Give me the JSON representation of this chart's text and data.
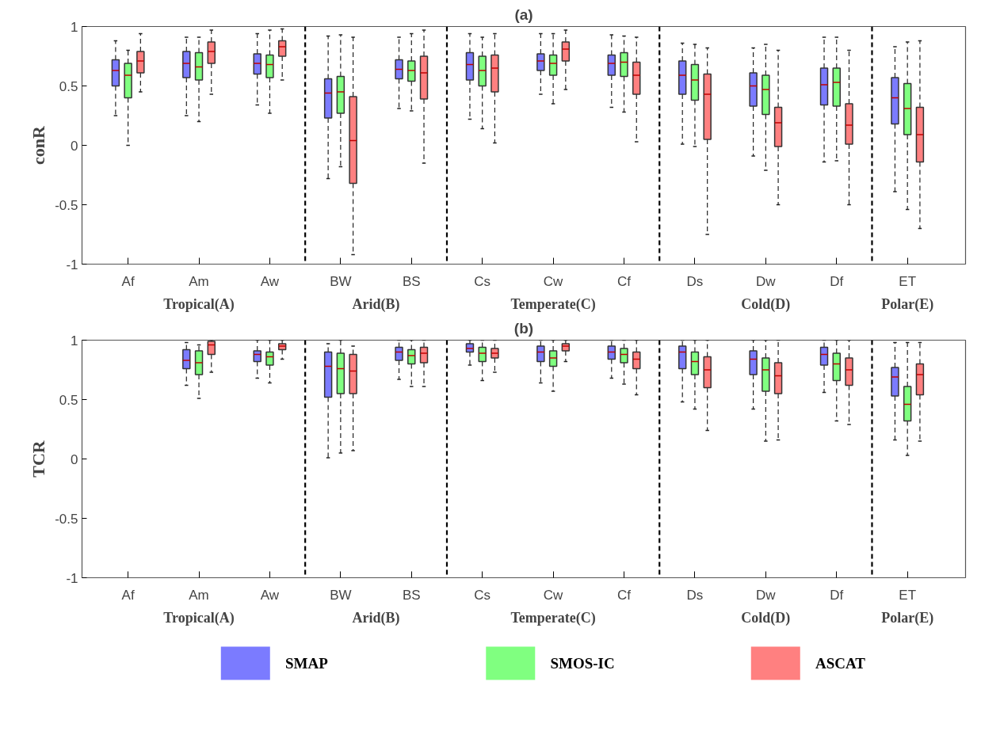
{
  "chart_data": [
    {
      "type": "box",
      "title": "(a)",
      "ylabel": "conR",
      "categories": [
        "Af",
        "Am",
        "Aw",
        "BW",
        "BS",
        "Cs",
        "Cw",
        "Cf",
        "Ds",
        "Dw",
        "Df",
        "ET"
      ],
      "ylim": [
        -1,
        1
      ],
      "yticks": [
        -1,
        -0.5,
        0,
        0.5,
        1
      ],
      "legend": false,
      "annotations": [
        "Tropical(A)",
        "Arid(B)",
        "Temperate(C)",
        "Cold(D)",
        "Polar(E)"
      ],
      "series": [
        {
          "color": "#7b7bff",
          "boxes": [
            {
              "low": 0.25,
              "q1": 0.5,
              "median": 0.63,
              "q3": 0.72,
              "high": 0.88
            },
            {
              "low": 0.25,
              "q1": 0.57,
              "median": 0.69,
              "q3": 0.79,
              "high": 0.91
            },
            {
              "low": 0.34,
              "q1": 0.6,
              "median": 0.69,
              "q3": 0.77,
              "high": 0.94
            },
            {
              "low": -0.28,
              "q1": 0.23,
              "median": 0.44,
              "q3": 0.56,
              "high": 0.92
            },
            {
              "low": 0.31,
              "q1": 0.56,
              "median": 0.64,
              "q3": 0.72,
              "high": 0.91
            },
            {
              "low": 0.22,
              "q1": 0.55,
              "median": 0.68,
              "q3": 0.78,
              "high": 0.94
            },
            {
              "low": 0.43,
              "q1": 0.63,
              "median": 0.71,
              "q3": 0.77,
              "high": 0.94
            },
            {
              "low": 0.32,
              "q1": 0.59,
              "median": 0.69,
              "q3": 0.76,
              "high": 0.93
            },
            {
              "low": 0.01,
              "q1": 0.43,
              "median": 0.59,
              "q3": 0.71,
              "high": 0.86
            },
            {
              "low": -0.09,
              "q1": 0.33,
              "median": 0.5,
              "q3": 0.61,
              "high": 0.82
            },
            {
              "low": -0.14,
              "q1": 0.34,
              "median": 0.51,
              "q3": 0.65,
              "high": 0.91
            },
            {
              "low": -0.39,
              "q1": 0.18,
              "median": 0.4,
              "q3": 0.57,
              "high": 0.83
            }
          ]
        },
        {
          "color": "#80ff80",
          "boxes": [
            {
              "low": 0.0,
              "q1": 0.4,
              "median": 0.59,
              "q3": 0.69,
              "high": 0.8
            },
            {
              "low": 0.2,
              "q1": 0.55,
              "median": 0.66,
              "q3": 0.78,
              "high": 0.91
            },
            {
              "low": 0.27,
              "q1": 0.57,
              "median": 0.68,
              "q3": 0.76,
              "high": 0.97
            },
            {
              "low": -0.18,
              "q1": 0.27,
              "median": 0.45,
              "q3": 0.58,
              "high": 0.93
            },
            {
              "low": 0.29,
              "q1": 0.54,
              "median": 0.63,
              "q3": 0.71,
              "high": 0.94
            },
            {
              "low": 0.14,
              "q1": 0.5,
              "median": 0.63,
              "q3": 0.75,
              "high": 0.91
            },
            {
              "low": 0.35,
              "q1": 0.59,
              "median": 0.69,
              "q3": 0.76,
              "high": 0.94
            },
            {
              "low": 0.28,
              "q1": 0.58,
              "median": 0.7,
              "q3": 0.78,
              "high": 0.92
            },
            {
              "low": -0.01,
              "q1": 0.38,
              "median": 0.55,
              "q3": 0.68,
              "high": 0.85
            },
            {
              "low": -0.21,
              "q1": 0.26,
              "median": 0.47,
              "q3": 0.59,
              "high": 0.85
            },
            {
              "low": -0.13,
              "q1": 0.33,
              "median": 0.53,
              "q3": 0.65,
              "high": 0.91
            },
            {
              "low": -0.54,
              "q1": 0.09,
              "median": 0.31,
              "q3": 0.52,
              "high": 0.87
            }
          ]
        },
        {
          "color": "#ff8080",
          "boxes": [
            {
              "low": 0.45,
              "q1": 0.61,
              "median": 0.71,
              "q3": 0.79,
              "high": 0.94
            },
            {
              "low": 0.43,
              "q1": 0.69,
              "median": 0.79,
              "q3": 0.87,
              "high": 0.97
            },
            {
              "low": 0.55,
              "q1": 0.75,
              "median": 0.83,
              "q3": 0.88,
              "high": 0.98
            },
            {
              "low": -0.92,
              "q1": -0.32,
              "median": 0.04,
              "q3": 0.41,
              "high": 0.91
            },
            {
              "low": -0.15,
              "q1": 0.39,
              "median": 0.61,
              "q3": 0.75,
              "high": 0.97
            },
            {
              "low": 0.02,
              "q1": 0.45,
              "median": 0.65,
              "q3": 0.76,
              "high": 0.94
            },
            {
              "low": 0.47,
              "q1": 0.71,
              "median": 0.81,
              "q3": 0.87,
              "high": 0.97
            },
            {
              "low": 0.03,
              "q1": 0.43,
              "median": 0.59,
              "q3": 0.7,
              "high": 0.91
            },
            {
              "low": -0.75,
              "q1": 0.05,
              "median": 0.43,
              "q3": 0.6,
              "high": 0.82
            },
            {
              "low": -0.5,
              "q1": -0.01,
              "median": 0.19,
              "q3": 0.32,
              "high": 0.8
            },
            {
              "low": -0.5,
              "q1": 0.01,
              "median": 0.17,
              "q3": 0.35,
              "high": 0.8
            },
            {
              "low": -0.7,
              "q1": -0.14,
              "median": 0.09,
              "q3": 0.32,
              "high": 0.88
            }
          ]
        }
      ]
    },
    {
      "type": "box",
      "title": "(b)",
      "ylabel": "TCR",
      "categories": [
        "Af",
        "Am",
        "Aw",
        "BW",
        "BS",
        "Cs",
        "Cw",
        "Cf",
        "Ds",
        "Dw",
        "Df",
        "ET"
      ],
      "ylim": [
        -1,
        1
      ],
      "yticks": [
        -1,
        -0.5,
        0,
        0.5,
        1
      ],
      "legend": "bottom",
      "annotations": [
        "Tropical(A)",
        "Arid(B)",
        "Temperate(C)",
        "Cold(D)",
        "Polar(E)"
      ],
      "series": [
        {
          "name": "SMAP",
          "color": "#7b7bff",
          "boxes": [
            null,
            {
              "low": 0.62,
              "q1": 0.76,
              "median": 0.83,
              "q3": 0.92,
              "high": 0.98
            },
            {
              "low": 0.68,
              "q1": 0.82,
              "median": 0.88,
              "q3": 0.91,
              "high": 1.0
            },
            {
              "low": 0.01,
              "q1": 0.52,
              "median": 0.78,
              "q3": 0.9,
              "high": 0.97
            },
            {
              "low": 0.67,
              "q1": 0.83,
              "median": 0.9,
              "q3": 0.94,
              "high": 1.0
            },
            {
              "low": 0.79,
              "q1": 0.9,
              "median": 0.93,
              "q3": 0.97,
              "high": 1.0
            },
            {
              "low": 0.64,
              "q1": 0.82,
              "median": 0.9,
              "q3": 0.95,
              "high": 1.0
            },
            {
              "low": 0.68,
              "q1": 0.84,
              "median": 0.9,
              "q3": 0.95,
              "high": 1.0
            },
            {
              "low": 0.48,
              "q1": 0.76,
              "median": 0.9,
              "q3": 0.95,
              "high": 1.0
            },
            {
              "low": 0.42,
              "q1": 0.71,
              "median": 0.84,
              "q3": 0.91,
              "high": 1.0
            },
            {
              "low": 0.56,
              "q1": 0.79,
              "median": 0.88,
              "q3": 0.94,
              "high": 1.0
            },
            {
              "low": 0.16,
              "q1": 0.53,
              "median": 0.69,
              "q3": 0.77,
              "high": 0.98
            }
          ]
        },
        {
          "name": "SMOS-IC",
          "color": "#80ff80",
          "boxes": [
            null,
            {
              "low": 0.51,
              "q1": 0.71,
              "median": 0.81,
              "q3": 0.91,
              "high": 0.96
            },
            {
              "low": 0.64,
              "q1": 0.79,
              "median": 0.86,
              "q3": 0.9,
              "high": 1.0
            },
            {
              "low": 0.05,
              "q1": 0.55,
              "median": 0.76,
              "q3": 0.89,
              "high": 1.0
            },
            {
              "low": 0.61,
              "q1": 0.8,
              "median": 0.87,
              "q3": 0.92,
              "high": 1.0
            },
            {
              "low": 0.66,
              "q1": 0.82,
              "median": 0.89,
              "q3": 0.94,
              "high": 1.0
            },
            {
              "low": 0.57,
              "q1": 0.78,
              "median": 0.85,
              "q3": 0.91,
              "high": 1.0
            },
            {
              "low": 0.63,
              "q1": 0.81,
              "median": 0.88,
              "q3": 0.93,
              "high": 1.0
            },
            {
              "low": 0.42,
              "q1": 0.71,
              "median": 0.82,
              "q3": 0.9,
              "high": 1.0
            },
            {
              "low": 0.15,
              "q1": 0.57,
              "median": 0.75,
              "q3": 0.85,
              "high": 1.0
            },
            {
              "low": 0.32,
              "q1": 0.66,
              "median": 0.8,
              "q3": 0.89,
              "high": 1.0
            },
            {
              "low": 0.03,
              "q1": 0.32,
              "median": 0.46,
              "q3": 0.61,
              "high": 0.98
            }
          ]
        },
        {
          "name": "ASCAT",
          "color": "#ff8080",
          "boxes": [
            null,
            {
              "low": 0.73,
              "q1": 0.88,
              "median": 0.96,
              "q3": 0.99,
              "high": 1.0
            },
            {
              "low": 0.84,
              "q1": 0.92,
              "median": 0.95,
              "q3": 0.97,
              "high": 1.0
            },
            {
              "low": 0.07,
              "q1": 0.55,
              "median": 0.74,
              "q3": 0.88,
              "high": 0.95
            },
            {
              "low": 0.61,
              "q1": 0.81,
              "median": 0.89,
              "q3": 0.94,
              "high": 1.0
            },
            {
              "low": 0.73,
              "q1": 0.85,
              "median": 0.89,
              "q3": 0.93,
              "high": 1.0
            },
            {
              "low": 0.82,
              "q1": 0.91,
              "median": 0.95,
              "q3": 0.97,
              "high": 1.0
            },
            {
              "low": 0.54,
              "q1": 0.76,
              "median": 0.84,
              "q3": 0.9,
              "high": 1.0
            },
            {
              "low": 0.24,
              "q1": 0.6,
              "median": 0.75,
              "q3": 0.86,
              "high": 1.0
            },
            {
              "low": 0.16,
              "q1": 0.55,
              "median": 0.7,
              "q3": 0.81,
              "high": 1.0
            },
            {
              "low": 0.29,
              "q1": 0.62,
              "median": 0.75,
              "q3": 0.85,
              "high": 1.0
            },
            {
              "low": 0.15,
              "q1": 0.54,
              "median": 0.71,
              "q3": 0.8,
              "high": 0.98
            }
          ]
        }
      ]
    }
  ]
}
